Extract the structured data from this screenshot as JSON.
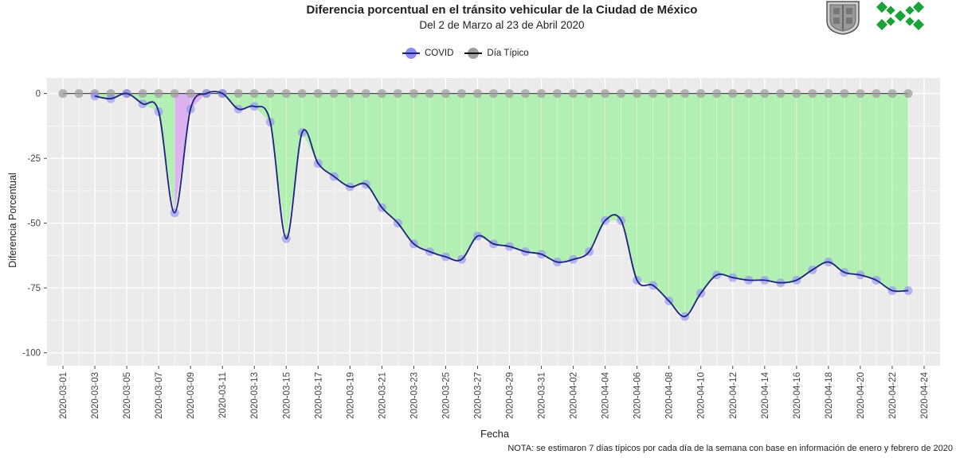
{
  "header": {
    "title": "Diferencia porcentual en el tránsito vehicular de la Ciudad de México",
    "subtitle": "Del 2 de Marzo al 23 de Abril 2020"
  },
  "legend": {
    "covid": "COVID",
    "tipico": "Día Típico"
  },
  "note": "NOTA: se estimaron 7 días típicos por cada día de la semana con base en información de enero y febrero de 2020",
  "colors": {
    "panel": "#ebebeb",
    "grid": "#ffffff",
    "green_fill": "#a8f0a8",
    "purple_fill": "#d9a8f0",
    "covid_line": "#1a237e",
    "covid_point": "#8c8cf5",
    "tipico_point": "#9e9e9e",
    "logo_green": "#1aa33a"
  },
  "logos": {
    "left": "cdmx-shield-icon",
    "right": "cdmx-x-logo-icon"
  },
  "chart_data": {
    "type": "line",
    "title": "Diferencia porcentual en el tránsito vehicular de la Ciudad de México",
    "subtitle": "Del 2 de Marzo al 23 de Abril 2020",
    "xlabel": "Fecha",
    "ylabel": "Diferencia Porcentual",
    "ylim": [
      -105,
      6
    ],
    "yticks": [
      0,
      -25,
      -50,
      -75,
      -100
    ],
    "xlim": [
      "2020-02-29",
      "2020-04-25"
    ],
    "xticks": [
      "2020-03-01",
      "2020-03-03",
      "2020-03-05",
      "2020-03-07",
      "2020-03-09",
      "2020-03-11",
      "2020-03-13",
      "2020-03-15",
      "2020-03-17",
      "2020-03-19",
      "2020-03-21",
      "2020-03-23",
      "2020-03-25",
      "2020-03-27",
      "2020-03-29",
      "2020-03-31",
      "2020-04-02",
      "2020-04-04",
      "2020-04-06",
      "2020-04-08",
      "2020-04-10",
      "2020-04-12",
      "2020-04-14",
      "2020-04-16",
      "2020-04-18",
      "2020-04-20",
      "2020-04-22",
      "2020-04-24"
    ],
    "grid": true,
    "legend_position": "top",
    "series": [
      {
        "name": "COVID",
        "x": [
          "2020-03-03",
          "2020-03-04",
          "2020-03-05",
          "2020-03-06",
          "2020-03-07",
          "2020-03-08",
          "2020-03-09",
          "2020-03-10",
          "2020-03-11",
          "2020-03-12",
          "2020-03-13",
          "2020-03-14",
          "2020-03-15",
          "2020-03-16",
          "2020-03-17",
          "2020-03-18",
          "2020-03-19",
          "2020-03-20",
          "2020-03-21",
          "2020-03-22",
          "2020-03-23",
          "2020-03-24",
          "2020-03-25",
          "2020-03-26",
          "2020-03-27",
          "2020-03-28",
          "2020-03-29",
          "2020-03-30",
          "2020-03-31",
          "2020-04-01",
          "2020-04-02",
          "2020-04-03",
          "2020-04-04",
          "2020-04-05",
          "2020-04-06",
          "2020-04-07",
          "2020-04-08",
          "2020-04-09",
          "2020-04-10",
          "2020-04-11",
          "2020-04-12",
          "2020-04-13",
          "2020-04-14",
          "2020-04-15",
          "2020-04-16",
          "2020-04-17",
          "2020-04-18",
          "2020-04-19",
          "2020-04-20",
          "2020-04-21",
          "2020-04-22",
          "2020-04-23"
        ],
        "y": [
          -1,
          -2,
          0,
          -4,
          -7,
          -46,
          -6,
          0,
          0,
          -6,
          -5,
          -11,
          -56,
          -15,
          -27,
          -32,
          -36,
          -35,
          -44,
          -50,
          -58,
          -61,
          -63,
          -64,
          -55,
          -58,
          -59,
          -61,
          -62,
          -65,
          -64,
          -61,
          -49,
          -49,
          -72,
          -74,
          -80,
          -86,
          -77,
          -70,
          -71,
          -72,
          -72,
          -73,
          -72,
          -68,
          -65,
          -69,
          -70,
          -72,
          -76,
          -76
        ]
      },
      {
        "name": "Día Típico",
        "x": [
          "2020-03-01",
          "2020-03-02",
          "2020-03-03",
          "2020-03-04",
          "2020-03-05",
          "2020-03-06",
          "2020-03-07",
          "2020-03-08",
          "2020-03-09",
          "2020-03-10",
          "2020-03-11",
          "2020-03-12",
          "2020-03-13",
          "2020-03-14",
          "2020-03-15",
          "2020-03-16",
          "2020-03-17",
          "2020-03-18",
          "2020-03-19",
          "2020-03-20",
          "2020-03-21",
          "2020-03-22",
          "2020-03-23",
          "2020-03-24",
          "2020-03-25",
          "2020-03-26",
          "2020-03-27",
          "2020-03-28",
          "2020-03-29",
          "2020-03-30",
          "2020-03-31",
          "2020-04-01",
          "2020-04-02",
          "2020-04-03",
          "2020-04-04",
          "2020-04-05",
          "2020-04-06",
          "2020-04-07",
          "2020-04-08",
          "2020-04-09",
          "2020-04-10",
          "2020-04-11",
          "2020-04-12",
          "2020-04-13",
          "2020-04-14",
          "2020-04-15",
          "2020-04-16",
          "2020-04-17",
          "2020-04-18",
          "2020-04-19",
          "2020-04-20",
          "2020-04-21",
          "2020-04-22",
          "2020-04-23"
        ],
        "y": [
          0,
          0,
          0,
          0,
          0,
          0,
          0,
          0,
          0,
          0,
          0,
          0,
          0,
          0,
          0,
          0,
          0,
          0,
          0,
          0,
          0,
          0,
          0,
          0,
          0,
          0,
          0,
          0,
          0,
          0,
          0,
          0,
          0,
          0,
          0,
          0,
          0,
          0,
          0,
          0,
          0,
          0,
          0,
          0,
          0,
          0,
          0,
          0,
          0,
          0,
          0,
          0,
          0,
          0
        ]
      }
    ]
  }
}
